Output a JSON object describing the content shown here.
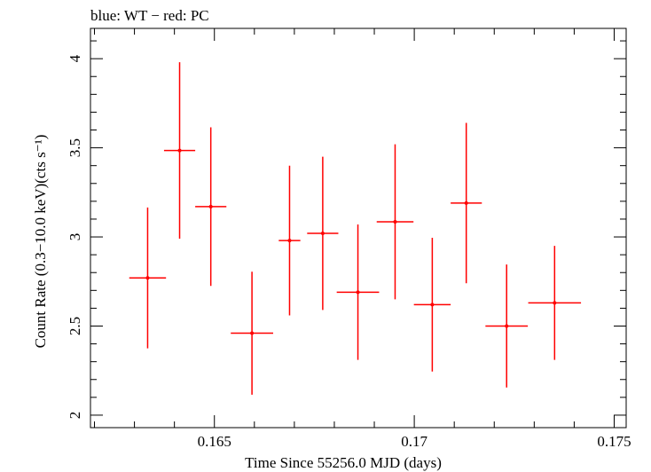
{
  "chart_data": {
    "type": "scatter",
    "title": "blue: WT − red: PC",
    "xlabel": "Time Since 55256.0 MJD (days)",
    "ylabel": "Count Rate (0.3−10.0 keV)(cts s⁻¹)",
    "xlim": [
      0.1619,
      0.1753
    ],
    "ylim": [
      1.93,
      4.17
    ],
    "x_ticks": [
      0.165,
      0.17,
      0.175
    ],
    "x_tick_labels": [
      "0.165",
      "0.17",
      "0.175"
    ],
    "y_ticks": [
      2,
      2.5,
      3,
      3.5,
      4
    ],
    "y_tick_labels": [
      "2",
      "2.5",
      "3",
      "3.5",
      "4"
    ],
    "grid": false,
    "series": [
      {
        "name": "PC",
        "color": "#ff0000",
        "points": [
          {
            "x": 0.16333,
            "y": 2.77,
            "xerr": 0.00046,
            "yerr": 0.395
          },
          {
            "x": 0.16413,
            "y": 3.485,
            "xerr": 0.00039,
            "yerr": 0.495
          },
          {
            "x": 0.16491,
            "y": 3.17,
            "xerr": 0.00039,
            "yerr": 0.445
          },
          {
            "x": 0.16594,
            "y": 2.46,
            "xerr": 0.00053,
            "yerr": 0.345
          },
          {
            "x": 0.16688,
            "y": 2.98,
            "xerr": 0.00027,
            "yerr": 0.42
          },
          {
            "x": 0.16771,
            "y": 3.02,
            "xerr": 0.00039,
            "yerr": 0.43
          },
          {
            "x": 0.16859,
            "y": 2.69,
            "xerr": 0.00053,
            "yerr": 0.38
          },
          {
            "x": 0.16952,
            "y": 3.085,
            "xerr": 0.00046,
            "yerr": 0.435
          },
          {
            "x": 0.17045,
            "y": 2.62,
            "xerr": 0.00046,
            "yerr": 0.375
          },
          {
            "x": 0.1713,
            "y": 3.19,
            "xerr": 0.00039,
            "yerr": 0.45
          },
          {
            "x": 0.17231,
            "y": 2.5,
            "xerr": 0.00053,
            "yerr": 0.345
          },
          {
            "x": 0.17351,
            "y": 2.63,
            "xerr": 0.00066,
            "yerr": 0.32
          }
        ]
      }
    ]
  }
}
